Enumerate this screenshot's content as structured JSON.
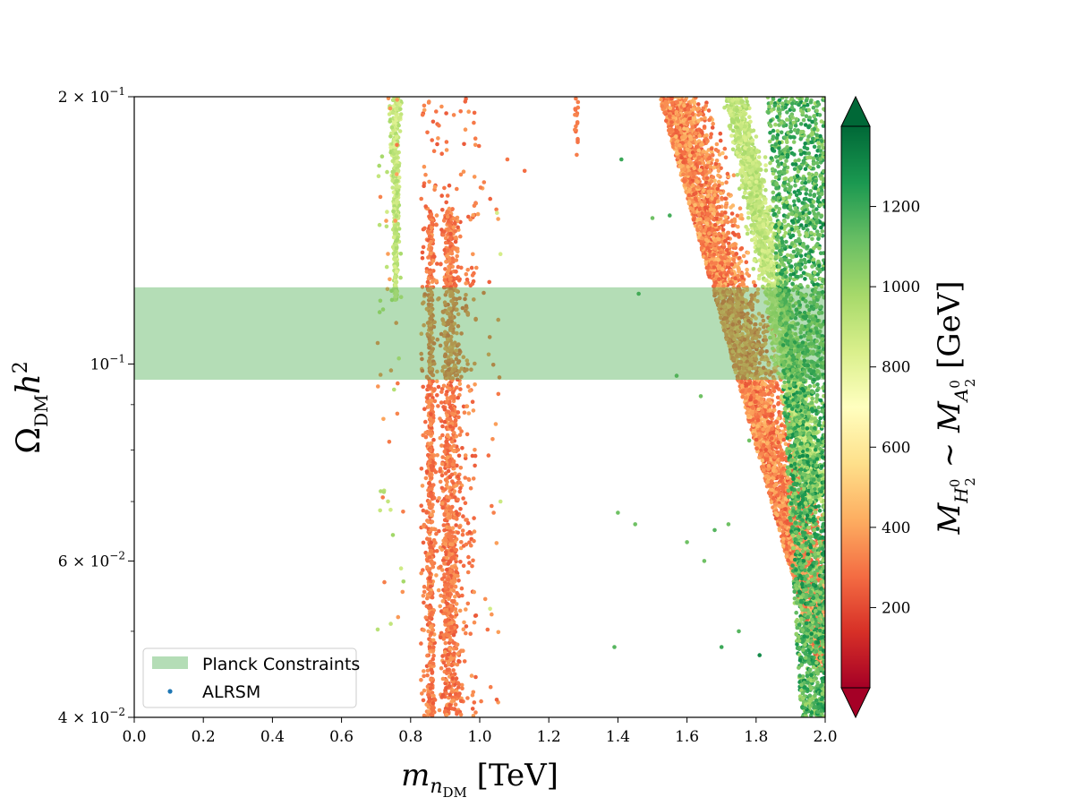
{
  "chart_data": {
    "type": "scatter",
    "title": "",
    "xlabel": "m_{n_DM} [TeV]",
    "ylabel": "Ω_DM h^2",
    "colorbar_label": "M_{H_2^0} ~ M_{A_2^0} [GeV]",
    "xlim": [
      0.0,
      2.0
    ],
    "ylim": [
      0.04,
      0.2
    ],
    "yscale": "log",
    "x_ticks": [
      {
        "value": 0.0,
        "label": "0.0"
      },
      {
        "value": 0.2,
        "label": "0.2"
      },
      {
        "value": 0.4,
        "label": "0.4"
      },
      {
        "value": 0.6,
        "label": "0.6"
      },
      {
        "value": 0.8,
        "label": "0.8"
      },
      {
        "value": 1.0,
        "label": "1.0"
      },
      {
        "value": 1.2,
        "label": "1.2"
      },
      {
        "value": 1.4,
        "label": "1.4"
      },
      {
        "value": 1.6,
        "label": "1.6"
      },
      {
        "value": 1.8,
        "label": "1.8"
      },
      {
        "value": 2.0,
        "label": "2.0"
      }
    ],
    "y_ticks": [
      {
        "value": 0.2,
        "base": "2 × 10",
        "exp": "−1"
      },
      {
        "value": 0.1,
        "base": "10",
        "exp": "−1"
      },
      {
        "value": 0.06,
        "base": "6 × 10",
        "exp": "−2"
      },
      {
        "value": 0.04,
        "base": "4 × 10",
        "exp": "−2"
      }
    ],
    "y_minor_ticks": [
      0.05,
      0.07,
      0.08,
      0.09
    ],
    "planck_band": {
      "ymin": 0.096,
      "ymax": 0.122,
      "color": "#4caf50",
      "opacity": 0.42
    },
    "colorbar": {
      "range": [
        0,
        1400
      ],
      "ticks": [
        200,
        400,
        600,
        800,
        1000,
        1200
      ],
      "extend": "both"
    },
    "legend": {
      "location": "lower-left",
      "entries": [
        {
          "label": "Planck Constraints",
          "kind": "patch",
          "color": "#4caf50"
        },
        {
          "label": "ALRSM",
          "kind": "marker",
          "color": "#1f77b4"
        }
      ]
    },
    "series": [
      {
        "name": "ALRSM",
        "regions": [
          {
            "desc": "narrow band near 0.76 TeV",
            "x": [
              0.73,
              0.78
            ],
            "y": [
              0.115,
              0.2
            ],
            "color_range": [
              800,
              1000
            ]
          },
          {
            "desc": "vertical band near 0.9 TeV",
            "x": [
              0.83,
              0.99
            ],
            "y": [
              0.04,
              0.2
            ],
            "color_range": [
              200,
              400
            ]
          },
          {
            "desc": "diagonal band 1.5-2.0 TeV",
            "x": [
              1.5,
              2.0
            ],
            "y": [
              0.045,
              0.2
            ],
            "color_range": [
              200,
              500
            ]
          },
          {
            "desc": "high-mass scatter",
            "x": [
              1.8,
              2.0
            ],
            "y": [
              0.04,
              0.2
            ],
            "color_range": [
              800,
              1300
            ]
          }
        ]
      }
    ]
  }
}
